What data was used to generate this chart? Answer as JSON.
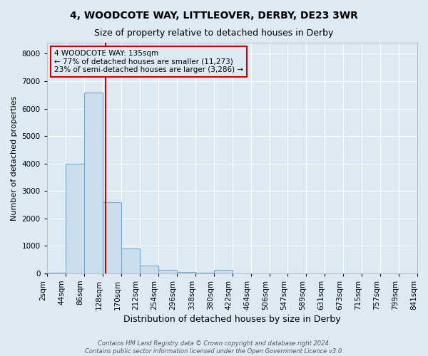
{
  "title": "4, WOODCOTE WAY, LITTLEOVER, DERBY, DE23 3WR",
  "subtitle": "Size of property relative to detached houses in Derby",
  "xlabel": "Distribution of detached houses by size in Derby",
  "ylabel": "Number of detached properties",
  "footnote1": "Contains HM Land Registry data © Crown copyright and database right 2024.",
  "footnote2": "Contains public sector information licensed under the Open Government Licence v3.0.",
  "annotation_line1": "4 WOODCOTE WAY: 135sqm",
  "annotation_line2": "← 77% of detached houses are smaller (11,273)",
  "annotation_line3": "23% of semi-detached houses are larger (3,286) →",
  "property_size": 135,
  "bar_color": "#ccdded",
  "bar_edge_color": "#7ba8c8",
  "red_line_color": "#cc0000",
  "background_color": "#ddeaf4",
  "grid_color": "#c8d8e8",
  "bins": [
    2,
    44,
    86,
    128,
    170,
    212,
    254,
    296,
    338,
    380,
    422,
    464,
    506,
    547,
    589,
    631,
    673,
    715,
    757,
    799,
    841
  ],
  "bin_labels": [
    "2sqm",
    "44sqm",
    "86sqm",
    "128sqm",
    "170sqm",
    "212sqm",
    "254sqm",
    "296sqm",
    "338sqm",
    "380sqm",
    "422sqm",
    "464sqm",
    "506sqm",
    "547sqm",
    "589sqm",
    "631sqm",
    "673sqm",
    "715sqm",
    "757sqm",
    "799sqm",
    "841sqm"
  ],
  "counts": [
    30,
    3980,
    6580,
    2600,
    900,
    290,
    120,
    55,
    30,
    120,
    0,
    0,
    0,
    0,
    0,
    0,
    0,
    0,
    0,
    0
  ],
  "ylim": [
    0,
    8400
  ],
  "yticks": [
    0,
    1000,
    2000,
    3000,
    4000,
    5000,
    6000,
    7000,
    8000
  ],
  "title_fontsize": 10,
  "subtitle_fontsize": 9,
  "xlabel_fontsize": 9,
  "ylabel_fontsize": 8,
  "tick_fontsize": 7.5,
  "annotation_fontsize": 7.5,
  "footnote_fontsize": 6
}
